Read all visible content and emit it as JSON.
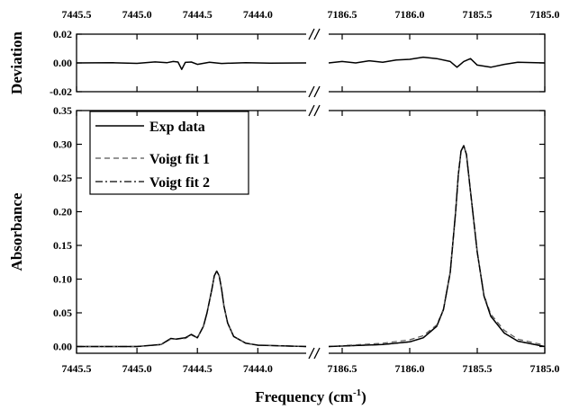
{
  "chart_data": {
    "type": "line",
    "broken_x_axis": true,
    "x_segments": [
      {
        "range": [
          7445.5,
          7443.6
        ],
        "tick_labels": [
          "7445.5",
          "7445.0",
          "7444.5",
          "7444.0"
        ],
        "ticks": [
          7445.5,
          7445.0,
          7444.5,
          7444.0
        ]
      },
      {
        "range": [
          7186.6,
          7185.0
        ],
        "tick_labels": [
          "7186.5",
          "7186.0",
          "7185.5",
          "7185.0"
        ],
        "ticks": [
          7186.5,
          7186.0,
          7185.5,
          7185.0
        ]
      }
    ],
    "xlabel": "Frequency (cm",
    "xlabel_sup": "-1",
    "xlabel_close": ")",
    "panels": [
      {
        "id": "deviation",
        "ylabel": "Deviation",
        "ylim": [
          -0.02,
          0.02
        ],
        "ytick_labels": [
          "-0.02",
          "0.00",
          "0.02"
        ],
        "yticks": [
          -0.02,
          0.0,
          0.02
        ],
        "series": [
          {
            "style": "solid",
            "segments": [
              {
                "x": [
                  7445.5,
                  7445.2,
                  7445.0,
                  7444.85,
                  7444.75,
                  7444.7,
                  7444.66,
                  7444.63,
                  7444.6,
                  7444.55,
                  7444.5,
                  7444.4,
                  7444.3,
                  7444.1,
                  7443.9,
                  7443.6
                ],
                "y": [
                  0.0,
                  0.0001,
                  -0.0003,
                  0.0007,
                  0.0002,
                  0.001,
                  0.0006,
                  -0.0045,
                  0.0004,
                  0.0006,
                  -0.001,
                  0.0005,
                  -0.0004,
                  0.0002,
                  -0.0001,
                  0.0
                ]
              },
              {
                "x": [
                  7186.6,
                  7186.5,
                  7186.4,
                  7186.3,
                  7186.2,
                  7186.1,
                  7186.0,
                  7185.9,
                  7185.8,
                  7185.7,
                  7185.65,
                  7185.6,
                  7185.55,
                  7185.5,
                  7185.4,
                  7185.3,
                  7185.2,
                  7185.0
                ],
                "y": [
                  0.0,
                  0.001,
                  0.0,
                  0.0015,
                  0.0005,
                  0.002,
                  0.0025,
                  0.004,
                  0.003,
                  0.001,
                  -0.003,
                  0.001,
                  0.003,
                  -0.0015,
                  -0.003,
                  -0.001,
                  0.0005,
                  0.0
                ]
              }
            ]
          }
        ]
      },
      {
        "id": "absorbance",
        "ylabel": "Absorbance",
        "ylim": [
          -0.01,
          0.35
        ],
        "ytick_labels": [
          "0.00",
          "0.05",
          "0.10",
          "0.15",
          "0.20",
          "0.25",
          "0.30",
          "0.35"
        ],
        "yticks": [
          0.0,
          0.05,
          0.1,
          0.15,
          0.2,
          0.25,
          0.3,
          0.35
        ],
        "legend": {
          "placement": "top-left",
          "entries": [
            "Exp data",
            "Voigt fit 1",
            "Voigt fit 2"
          ]
        },
        "series": [
          {
            "name": "Exp data",
            "style": "solid",
            "segments": [
              {
                "x": [
                  7445.5,
                  7445.0,
                  7444.8,
                  7444.72,
                  7444.68,
                  7444.6,
                  7444.55,
                  7444.5,
                  7444.45,
                  7444.42,
                  7444.38,
                  7444.36,
                  7444.34,
                  7444.32,
                  7444.3,
                  7444.28,
                  7444.25,
                  7444.2,
                  7444.1,
                  7444.0,
                  7443.6
                ],
                "y": [
                  0.0,
                  0.0,
                  0.003,
                  0.012,
                  0.011,
                  0.013,
                  0.018,
                  0.013,
                  0.03,
                  0.05,
                  0.085,
                  0.105,
                  0.112,
                  0.105,
                  0.085,
                  0.06,
                  0.035,
                  0.015,
                  0.005,
                  0.002,
                  0.0
                ]
              },
              {
                "x": [
                  7186.6,
                  7186.2,
                  7186.0,
                  7185.9,
                  7185.8,
                  7185.75,
                  7185.7,
                  7185.66,
                  7185.64,
                  7185.62,
                  7185.6,
                  7185.58,
                  7185.55,
                  7185.5,
                  7185.45,
                  7185.4,
                  7185.3,
                  7185.2,
                  7185.0
                ],
                "y": [
                  0.0,
                  0.003,
                  0.007,
                  0.013,
                  0.03,
                  0.055,
                  0.11,
                  0.2,
                  0.255,
                  0.29,
                  0.298,
                  0.285,
                  0.23,
                  0.14,
                  0.075,
                  0.045,
                  0.02,
                  0.008,
                  0.0
                ]
              }
            ]
          },
          {
            "name": "Voigt fit 1",
            "style": "dashed",
            "segments": [
              {
                "x": [
                  7445.5,
                  7445.0,
                  7444.8,
                  7444.72,
                  7444.68,
                  7444.6,
                  7444.55,
                  7444.5,
                  7444.45,
                  7444.42,
                  7444.38,
                  7444.36,
                  7444.34,
                  7444.32,
                  7444.3,
                  7444.28,
                  7444.25,
                  7444.2,
                  7444.1,
                  7444.0,
                  7443.6
                ],
                "y": [
                  0.0,
                  0.0,
                  0.003,
                  0.011,
                  0.011,
                  0.012,
                  0.017,
                  0.013,
                  0.03,
                  0.05,
                  0.085,
                  0.105,
                  0.112,
                  0.105,
                  0.085,
                  0.06,
                  0.035,
                  0.015,
                  0.005,
                  0.002,
                  0.0
                ]
              },
              {
                "x": [
                  7186.6,
                  7186.2,
                  7186.0,
                  7185.9,
                  7185.8,
                  7185.75,
                  7185.7,
                  7185.66,
                  7185.64,
                  7185.62,
                  7185.6,
                  7185.58,
                  7185.55,
                  7185.5,
                  7185.45,
                  7185.4,
                  7185.3,
                  7185.2,
                  7185.0
                ],
                "y": [
                  0.0,
                  0.005,
                  0.01,
                  0.016,
                  0.032,
                  0.056,
                  0.11,
                  0.2,
                  0.255,
                  0.29,
                  0.298,
                  0.285,
                  0.23,
                  0.14,
                  0.077,
                  0.048,
                  0.024,
                  0.011,
                  0.002
                ]
              }
            ]
          },
          {
            "name": "Voigt fit 2",
            "style": "dashdot",
            "segments": [
              {
                "x": [
                  7445.5,
                  7445.0,
                  7444.8,
                  7444.72,
                  7444.68,
                  7444.6,
                  7444.55,
                  7444.5,
                  7444.45,
                  7444.42,
                  7444.38,
                  7444.36,
                  7444.34,
                  7444.32,
                  7444.3,
                  7444.28,
                  7444.25,
                  7444.2,
                  7444.1,
                  7444.0,
                  7443.6
                ],
                "y": [
                  0.0,
                  0.0,
                  0.003,
                  0.012,
                  0.011,
                  0.013,
                  0.018,
                  0.013,
                  0.03,
                  0.05,
                  0.085,
                  0.105,
                  0.112,
                  0.105,
                  0.085,
                  0.06,
                  0.035,
                  0.015,
                  0.005,
                  0.002,
                  0.0
                ]
              },
              {
                "x": [
                  7186.6,
                  7186.2,
                  7186.0,
                  7185.9,
                  7185.8,
                  7185.75,
                  7185.7,
                  7185.66,
                  7185.64,
                  7185.62,
                  7185.6,
                  7185.58,
                  7185.55,
                  7185.5,
                  7185.45,
                  7185.4,
                  7185.3,
                  7185.2,
                  7185.0
                ],
                "y": [
                  0.0,
                  0.003,
                  0.007,
                  0.013,
                  0.03,
                  0.055,
                  0.11,
                  0.2,
                  0.255,
                  0.29,
                  0.298,
                  0.285,
                  0.23,
                  0.14,
                  0.075,
                  0.045,
                  0.02,
                  0.008,
                  0.0
                ]
              }
            ]
          }
        ]
      }
    ]
  }
}
